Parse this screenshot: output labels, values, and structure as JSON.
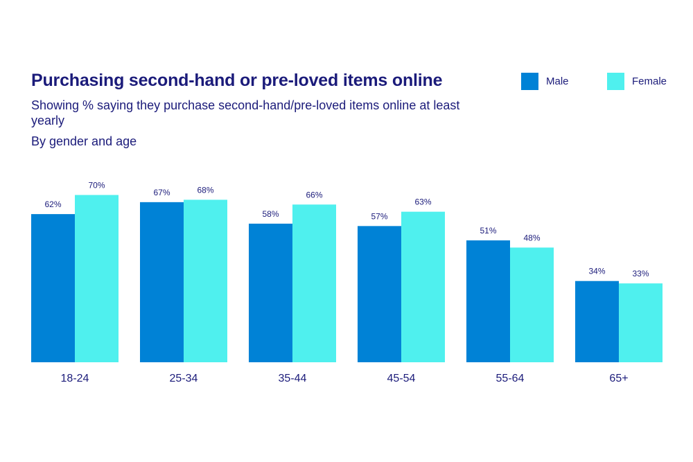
{
  "chart_data": {
    "type": "bar",
    "title": "Purchasing second-hand or pre-loved items online",
    "subtitle": "Showing % saying they purchase second-hand/pre-loved items online at least yearly",
    "note": "By gender and age",
    "categories": [
      "18-24",
      "25-34",
      "35-44",
      "45-54",
      "55-64",
      "65+"
    ],
    "series": [
      {
        "name": "Male",
        "color": "#0082d6",
        "values": [
          62,
          67,
          58,
          57,
          51,
          34
        ],
        "labels": [
          "62%",
          "67%",
          "58%",
          "57%",
          "51%",
          "34%"
        ]
      },
      {
        "name": "Female",
        "color": "#4ff0ee",
        "values": [
          70,
          68,
          66,
          63,
          48,
          33
        ],
        "labels": [
          "70%",
          "68%",
          "66%",
          "63%",
          "48%",
          "33%"
        ]
      }
    ],
    "ylim": [
      0,
      100
    ],
    "grid": false,
    "legend_position": "top-right"
  }
}
